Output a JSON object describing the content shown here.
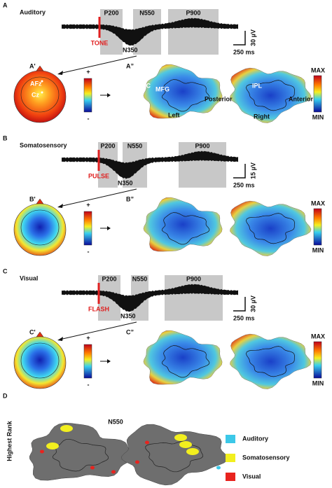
{
  "panels": [
    {
      "letter": "A",
      "modality": "Auditory",
      "components": {
        "p200": "P200",
        "n550": "N550",
        "p900": "P900",
        "n350": "N350"
      },
      "stimulus": "TONE",
      "amplitude_scale": "30 µV",
      "time_scale": "250 ms",
      "topography_label": "A'",
      "flatmap_label": "A”",
      "topography_labels": [
        "AFz",
        "Cz"
      ],
      "flatmap_labels": [
        "AC",
        "MFG",
        "IPL",
        "Posterior",
        "Anterior",
        "Left",
        "Right"
      ],
      "colorbar": {
        "plus": "+",
        "minus": "-",
        "max": "MAX",
        "min": "MIN"
      }
    },
    {
      "letter": "B",
      "modality": "Somatosensory",
      "components": {
        "p200": "P200",
        "n550": "N550",
        "p900": "P900",
        "n350": "N350"
      },
      "stimulus": "PULSE",
      "amplitude_scale": "15 µV",
      "time_scale": "250 ms",
      "topography_label": "B'",
      "flatmap_label": "B”",
      "colorbar": {
        "plus": "+",
        "minus": "-",
        "max": "MAX",
        "min": "MIN"
      }
    },
    {
      "letter": "C",
      "modality": "Visual",
      "components": {
        "p200": "P200",
        "n550": "N550",
        "p900": "P900",
        "n350": "N350"
      },
      "stimulus": "FLASH",
      "amplitude_scale": "30 µV",
      "time_scale": "250 ms",
      "topography_label": "C'",
      "flatmap_label": "C”",
      "colorbar": {
        "plus": "+",
        "minus": "-",
        "max": "MAX",
        "min": "MIN"
      }
    }
  ],
  "panel_d": {
    "letter": "D",
    "axis_label": "Highest Rank",
    "title": "N550",
    "legend": [
      {
        "name": "Auditory",
        "color": "#3cc8e8"
      },
      {
        "name": "Somatosensory",
        "color": "#f2ef1e"
      },
      {
        "name": "Visual",
        "color": "#e8231e"
      }
    ]
  }
}
